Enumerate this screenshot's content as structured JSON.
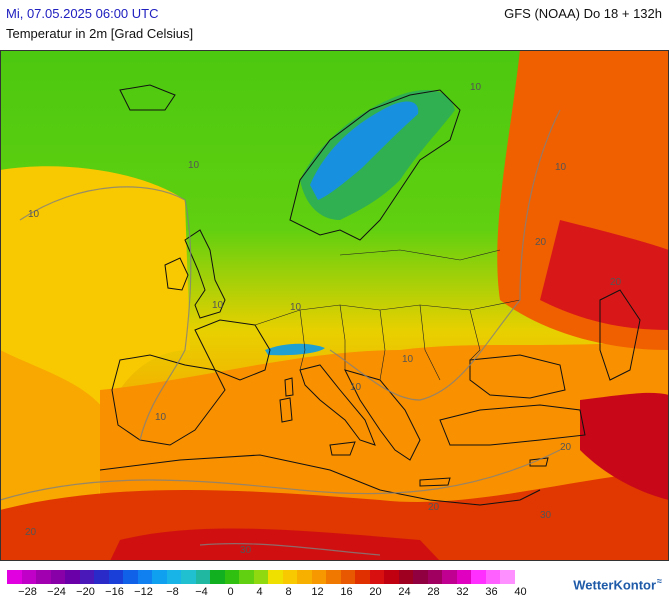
{
  "header": {
    "date": "Mi, 07.05.2025 06:00 UTC",
    "model": "GFS (NOAA) Do 18 + 132h",
    "parameter": "Temperatur in 2m [Grad Celsius]"
  },
  "map": {
    "contour_labels": [
      "10",
      "10",
      "10",
      "10",
      "10",
      "10",
      "10",
      "10",
      "10",
      "20",
      "20",
      "20",
      "20",
      "20",
      "30",
      "30"
    ]
  },
  "legend": {
    "ticks": [
      "−28",
      "−24",
      "−20",
      "−16",
      "−12",
      "−8",
      "−4",
      "0",
      "4",
      "8",
      "12",
      "16",
      "20",
      "24",
      "28",
      "32",
      "36",
      "40"
    ],
    "colors": [
      "#e000e0",
      "#c000c8",
      "#a000b0",
      "#8800a8",
      "#6a00a8",
      "#4a18b8",
      "#2a2ac8",
      "#1a3ed8",
      "#1060e8",
      "#1080f0",
      "#10a0f0",
      "#18b4e8",
      "#20c0d0",
      "#20b8a0",
      "#10b020",
      "#30c010",
      "#60d010",
      "#90d810",
      "#f0e000",
      "#f8c800",
      "#f8b000",
      "#f89800",
      "#f07800",
      "#e85800",
      "#e03000",
      "#d81010",
      "#c00010",
      "#a00020",
      "#900040",
      "#a00060",
      "#c00090",
      "#e000c0",
      "#ff30ff",
      "#ff60ff",
      "#ff90ff"
    ]
  },
  "brand": {
    "name": "WetterKontor",
    "mark": "≈"
  }
}
